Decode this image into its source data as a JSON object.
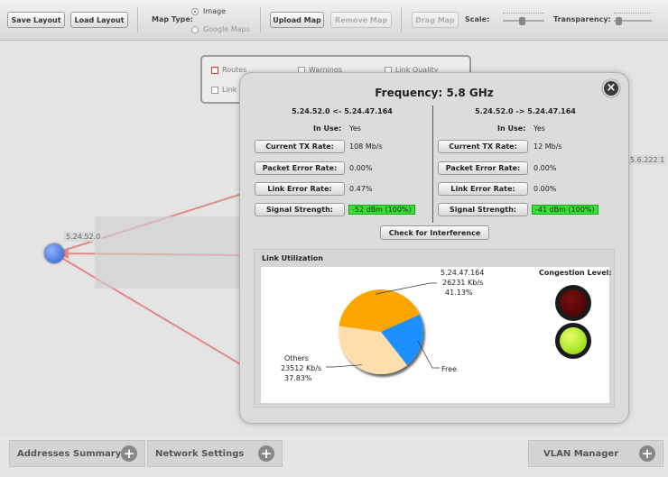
{
  "toolbar": {
    "save_layout": "Save Layout",
    "load_layout": "Load Layout",
    "map_type_label": "Map Type:",
    "map_type_options": [
      "Image",
      "Google Maps"
    ],
    "upload_map": "Upload Map",
    "remove_map": "Remove Map",
    "drag_map": "Drag Map",
    "scale_label": "Scale:",
    "transparency_label": "Transparency:"
  },
  "legend": {
    "items": [
      "Routes",
      "Warnings",
      "Link Quality",
      "Link"
    ]
  },
  "map": {
    "node_left_label": "5.24.52.0",
    "node_right_label": "5.6.222.1",
    "colors": {
      "route": "#e08a8a",
      "node": "#3b6fd1"
    }
  },
  "modal": {
    "title": "Frequency: 5.8 GHz",
    "left": {
      "header": "5.24.52.0 <- 5.24.47.164",
      "in_use_label": "In Use:",
      "in_use": "Yes",
      "rows": [
        {
          "label": "Current TX Rate:",
          "value": "108 Mb/s"
        },
        {
          "label": "Packet Error Rate:",
          "value": "0.00%"
        },
        {
          "label": "Link Error Rate:",
          "value": "0.47%"
        },
        {
          "label": "Signal Strength:",
          "value": "-52 dBm (100%)"
        }
      ]
    },
    "right": {
      "header": "5.24.52.0 -> 5.24.47.164",
      "in_use_label": "In Use:",
      "in_use": "Yes",
      "rows": [
        {
          "label": "Current TX Rate:",
          "value": "12 Mb/s"
        },
        {
          "label": "Packet Error Rate:",
          "value": "0.00%"
        },
        {
          "label": "Link Error Rate:",
          "value": "0.00%"
        },
        {
          "label": "Signal Strength:",
          "value": "-41 dBm (100%)"
        }
      ]
    },
    "check_interference": "Check for Interference",
    "link_utilization_title": "Link Utilization",
    "congestion_label": "Congestion Level:",
    "congestion_state": "green"
  },
  "chart_data": {
    "type": "pie",
    "slices": [
      {
        "name": "5.24.47.164",
        "rate": "26231 Kb/s",
        "percent_label": "41.13%",
        "value": 41.13,
        "color": "#ffa500"
      },
      {
        "name": "Free",
        "value": 21.04,
        "color": "#1e90ff"
      },
      {
        "name": "Others",
        "rate": "23512 Kb/s",
        "percent_label": "37.83%",
        "value": 37.83,
        "color": "#ffdead"
      }
    ]
  },
  "bottom": {
    "addresses_summary": "Addresses Summary",
    "network_settings": "Network Settings",
    "vlan_manager": "VLAN Manager",
    "plus": "+"
  }
}
